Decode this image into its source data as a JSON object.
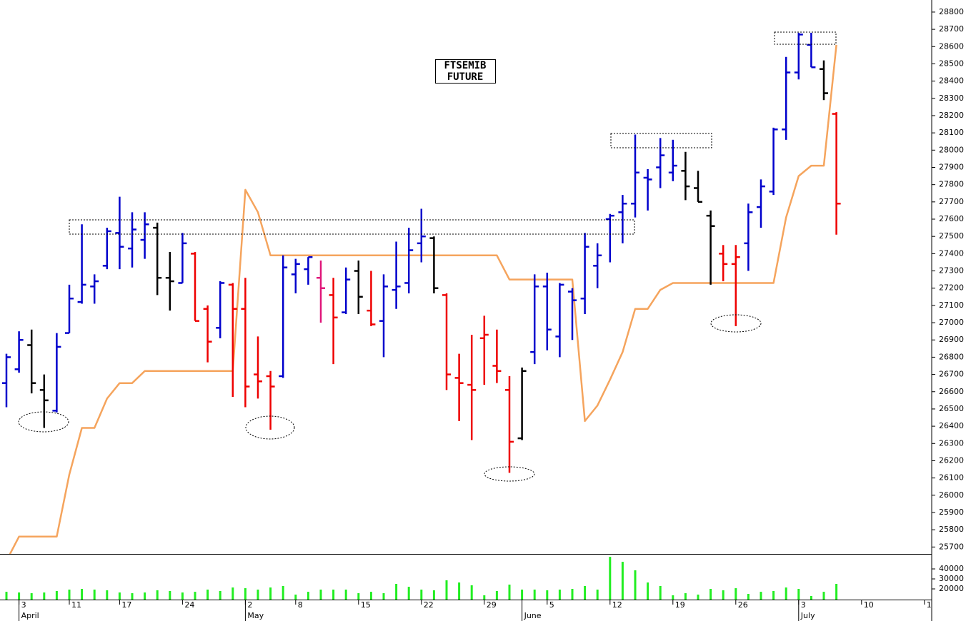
{
  "chart_data": {
    "type": "ohlc",
    "title_lines": [
      "FTSEMIB",
      "FUTURE"
    ],
    "categories": [
      null,
      "3",
      null,
      null,
      null,
      "11",
      null,
      null,
      null,
      "17",
      null,
      null,
      null,
      null,
      "24",
      null,
      null,
      null,
      null,
      "2",
      null,
      null,
      null,
      "8",
      null,
      null,
      null,
      null,
      "15",
      null,
      null,
      null,
      null,
      "22",
      null,
      null,
      null,
      null,
      "29",
      null,
      null,
      null,
      null,
      "5",
      null,
      null,
      null,
      null,
      "12",
      null,
      null,
      null,
      null,
      "19",
      null,
      null,
      null,
      null,
      "26",
      null,
      null,
      null,
      null,
      "3",
      null,
      null,
      null,
      null,
      "10",
      null,
      null,
      null,
      null,
      "1"
    ],
    "month_labels": [
      null,
      "April",
      null,
      null,
      null,
      null,
      null,
      null,
      null,
      null,
      null,
      null,
      null,
      null,
      null,
      null,
      null,
      null,
      null,
      "May",
      null,
      null,
      null,
      null,
      null,
      null,
      null,
      null,
      null,
      null,
      null,
      null,
      null,
      null,
      null,
      null,
      null,
      null,
      null,
      null,
      null,
      "June",
      null,
      null,
      null,
      null,
      null,
      null,
      null,
      null,
      null,
      null,
      null,
      null,
      null,
      null,
      null,
      null,
      null,
      null,
      null,
      null,
      null,
      "July",
      null,
      null,
      null,
      null,
      null,
      null,
      null,
      null,
      null,
      null
    ],
    "open": [
      26650,
      26730,
      26870,
      26610,
      26490,
      26940,
      27120,
      27210,
      27330,
      27520,
      27430,
      27480,
      27550,
      27260,
      27230,
      27400,
      27080,
      26970,
      27220,
      27080,
      26700,
      26690,
      26690,
      27280,
      27310,
      27260,
      27160,
      27060,
      27300,
      27070,
      27010,
      27190,
      27230,
      27460,
      27490,
      27160,
      26680,
      26640,
      26910,
      26750,
      26610,
      26330,
      26830,
      27210,
      26920,
      27180,
      27140,
      27330,
      27600,
      27640,
      27690,
      27840,
      27900,
      27870,
      27880,
      27780,
      27620,
      27400,
      27340,
      27460,
      27670,
      27760,
      28120,
      28450,
      28610,
      28470,
      28210,
      null,
      null,
      null,
      null,
      null,
      null,
      null
    ],
    "high": [
      26820,
      26950,
      26960,
      26700,
      26940,
      27220,
      27570,
      27280,
      27550,
      27730,
      27640,
      27640,
      27580,
      27410,
      27520,
      27410,
      27100,
      27240,
      27230,
      27260,
      26920,
      26720,
      27390,
      27370,
      27380,
      27360,
      27260,
      27320,
      27360,
      27300,
      27280,
      27470,
      27550,
      27660,
      27500,
      27170,
      26820,
      26930,
      27040,
      26960,
      26690,
      26740,
      27280,
      27290,
      27230,
      27200,
      27520,
      27460,
      27630,
      27740,
      28090,
      27890,
      28070,
      28060,
      27990,
      27880,
      27650,
      27450,
      27450,
      27690,
      27830,
      28130,
      28540,
      28680,
      28680,
      28520,
      28220,
      null,
      null,
      null,
      null,
      null,
      null,
      null
    ],
    "low": [
      26510,
      26710,
      26590,
      26390,
      26480,
      26940,
      27110,
      27110,
      27310,
      27310,
      27320,
      27370,
      27160,
      27070,
      27230,
      27010,
      26770,
      26910,
      26570,
      26510,
      26560,
      26380,
      26680,
      27170,
      27220,
      27000,
      26760,
      27050,
      27050,
      26980,
      26800,
      27080,
      27170,
      27350,
      27170,
      26610,
      26430,
      26320,
      26640,
      26650,
      26130,
      26320,
      26760,
      26840,
      26800,
      26900,
      27050,
      27200,
      27350,
      27460,
      27610,
      27650,
      27780,
      27820,
      27710,
      27700,
      27220,
      27240,
      26980,
      27300,
      27550,
      27740,
      28060,
      28410,
      28480,
      28290,
      27510,
      null,
      null,
      null,
      null,
      null,
      null,
      null
    ],
    "close": [
      26800,
      26900,
      26650,
      26550,
      26860,
      27140,
      27220,
      27240,
      27530,
      27440,
      27540,
      27570,
      27260,
      27240,
      27460,
      27010,
      26890,
      27230,
      27080,
      26630,
      26660,
      26630,
      27320,
      27340,
      27380,
      27200,
      27030,
      27250,
      27150,
      26990,
      27210,
      27210,
      27420,
      27500,
      27200,
      26700,
      26650,
      26610,
      26930,
      26720,
      26310,
      26720,
      27210,
      26960,
      27220,
      27130,
      27440,
      27390,
      27620,
      27690,
      27870,
      27830,
      27970,
      27910,
      27790,
      27700,
      27560,
      27340,
      27380,
      27640,
      27790,
      28120,
      28450,
      28670,
      28480,
      28330,
      27690,
      null,
      null,
      null,
      null,
      null,
      null,
      null
    ],
    "bar_colors": [
      "#0000cc",
      "#0000cc",
      "#000000",
      "#000000",
      "#0000cc",
      "#0000cc",
      "#0000cc",
      "#0000cc",
      "#0000cc",
      "#0000cc",
      "#0000cc",
      "#0000cc",
      "#000000",
      "#000000",
      "#0000cc",
      "#ee0000",
      "#ee0000",
      "#0000cc",
      "#ee0000",
      "#ee0000",
      "#ee0000",
      "#ee0000",
      "#0000cc",
      "#0000cc",
      "#0000cc",
      "#e0177a",
      "#ee0000",
      "#0000cc",
      "#000000",
      "#ee0000",
      "#0000cc",
      "#0000cc",
      "#0000cc",
      "#0000cc",
      "#000000",
      "#ee0000",
      "#ee0000",
      "#ee0000",
      "#ee0000",
      "#ee0000",
      "#ee0000",
      "#000000",
      "#0000cc",
      "#0000cc",
      "#0000cc",
      "#0000cc",
      "#0000cc",
      "#0000cc",
      "#0000cc",
      "#0000cc",
      "#0000cc",
      "#0000cc",
      "#0000cc",
      "#0000cc",
      "#000000",
      "#000000",
      "#000000",
      "#ee0000",
      "#ee0000",
      "#0000cc",
      "#0000cc",
      "#0000cc",
      "#0000cc",
      "#0000cc",
      "#0000cc",
      "#000000",
      "#ee0000",
      null,
      null,
      null,
      null,
      null,
      null,
      null
    ],
    "stop_line": {
      "color": "#f5a45d",
      "values": [
        25620,
        25760,
        25760,
        25760,
        25760,
        26120,
        26390,
        26390,
        26560,
        26650,
        26650,
        26720,
        26720,
        26720,
        26720,
        26720,
        26720,
        26720,
        26720,
        27770,
        27640,
        27390,
        27390,
        27390,
        27390,
        27390,
        27390,
        27390,
        27390,
        27390,
        27390,
        27390,
        27390,
        27390,
        27390,
        27390,
        27390,
        27390,
        27390,
        27390,
        27250,
        27250,
        27250,
        27250,
        27250,
        27250,
        26430,
        26520,
        26670,
        26830,
        27080,
        27080,
        27190,
        27230,
        27230,
        27230,
        27230,
        27230,
        27230,
        27230,
        27230,
        27230,
        27610,
        27850,
        27910,
        27910,
        28610,
        null,
        null,
        null,
        null,
        null,
        null,
        null
      ]
    },
    "ylim": [
      25660,
      28870
    ],
    "yticks": [
      25700,
      25800,
      25900,
      26000,
      26100,
      26200,
      26300,
      26400,
      26500,
      26600,
      26700,
      26800,
      26900,
      27000,
      27100,
      27200,
      27300,
      27400,
      27500,
      27600,
      27700,
      27800,
      27900,
      28000,
      28100,
      28200,
      28300,
      28400,
      28500,
      28600,
      28700,
      28800
    ],
    "volume": {
      "color": "#22ee22",
      "values": [
        17100,
        16400,
        15700,
        16400,
        17900,
        19300,
        20000,
        19300,
        18600,
        16400,
        15700,
        16400,
        18600,
        17900,
        16400,
        17100,
        19300,
        17900,
        21400,
        20700,
        19300,
        21400,
        22900,
        14300,
        17100,
        19300,
        19300,
        19300,
        15700,
        17100,
        15700,
        25000,
        22100,
        19300,
        18600,
        28600,
        26400,
        23600,
        13600,
        17900,
        24300,
        19300,
        19300,
        18600,
        19300,
        20000,
        22900,
        19300,
        52100,
        47100,
        38600,
        26400,
        22900,
        13600,
        15700,
        14300,
        20000,
        18600,
        20700,
        15000,
        17100,
        17900,
        21400,
        20000,
        12900,
        17100,
        25000,
        null,
        null,
        null,
        null,
        null,
        null,
        null
      ],
      "ylim": [
        9300,
        54300
      ],
      "yticks": [
        20000,
        30000,
        40000
      ]
    }
  }
}
